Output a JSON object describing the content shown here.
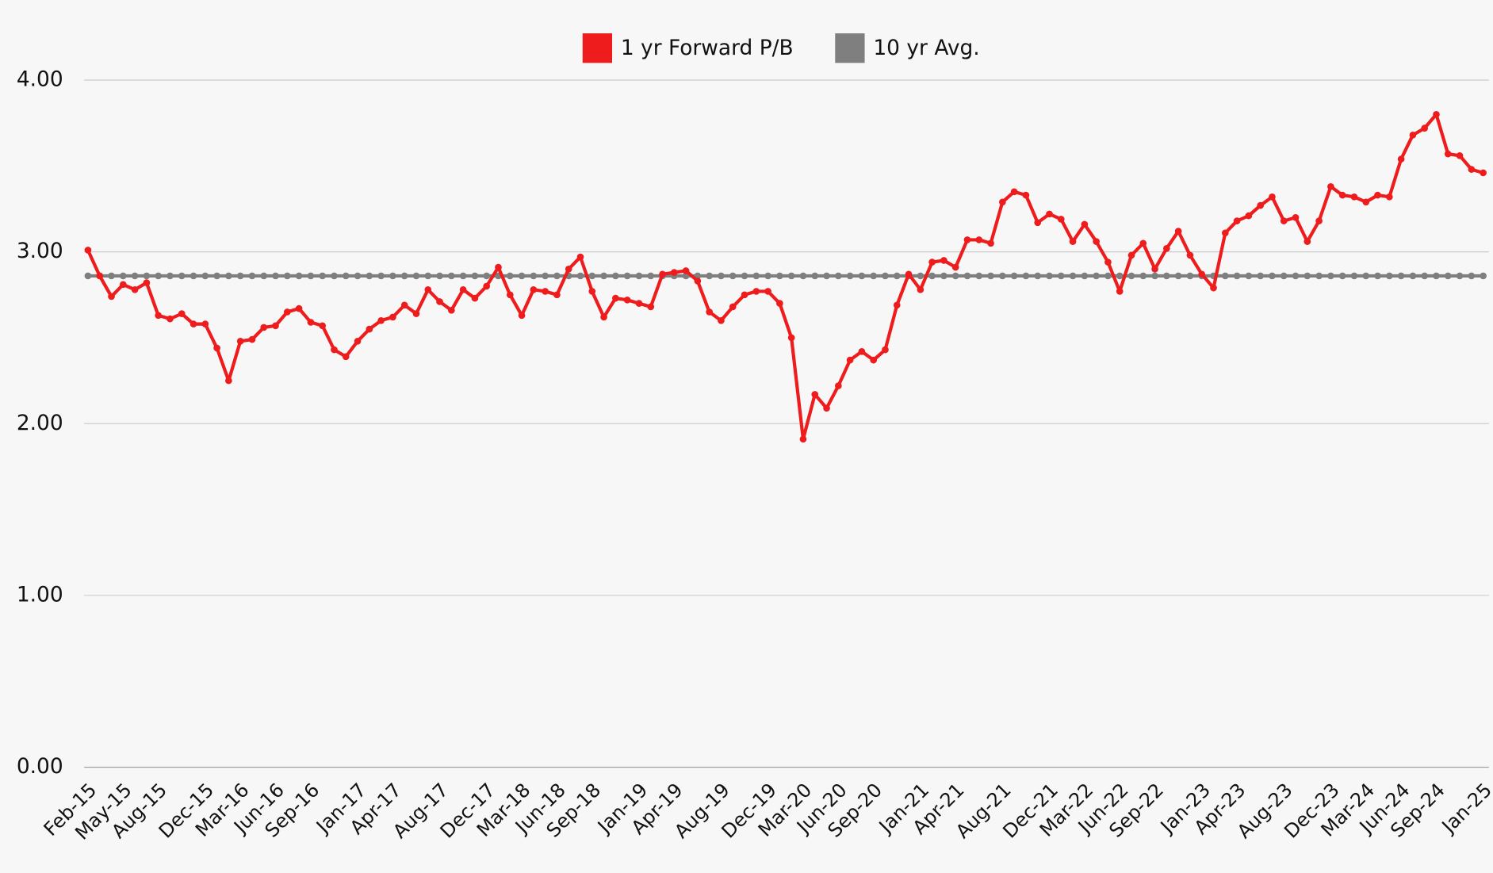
{
  "chart_data": {
    "type": "line",
    "categories": [
      "Feb-15",
      null,
      null,
      "May-15",
      null,
      null,
      "Aug-15",
      null,
      null,
      null,
      "Dec-15",
      null,
      null,
      "Mar-16",
      null,
      null,
      "Jun-16",
      null,
      null,
      "Sep-16",
      null,
      null,
      null,
      "Jan-17",
      null,
      null,
      "Apr-17",
      null,
      null,
      null,
      "Aug-17",
      null,
      null,
      null,
      "Dec-17",
      null,
      null,
      "Mar-18",
      null,
      null,
      "Jun-18",
      null,
      null,
      "Sep-18",
      null,
      null,
      null,
      "Jan-19",
      null,
      null,
      "Apr-19",
      null,
      null,
      null,
      "Aug-19",
      null,
      null,
      null,
      "Dec-19",
      null,
      null,
      "Mar-20",
      null,
      null,
      "Jun-20",
      null,
      null,
      "Sep-20",
      null,
      null,
      null,
      "Jan-21",
      null,
      null,
      "Apr-21",
      null,
      null,
      null,
      "Aug-21",
      null,
      null,
      null,
      "Dec-21",
      null,
      null,
      "Mar-22",
      null,
      null,
      "Jun-22",
      null,
      null,
      "Sep-22",
      null,
      null,
      null,
      "Jan-23",
      null,
      null,
      "Apr-23",
      null,
      null,
      null,
      "Aug-23",
      null,
      null,
      null,
      "Dec-23",
      null,
      null,
      "Mar-24",
      null,
      null,
      "Jun-24",
      null,
      null,
      "Sep-24",
      null,
      null,
      null,
      "Jan-25"
    ],
    "series": [
      {
        "name": "1 yr Forward P/B",
        "color": "#ee1c1c",
        "values": [
          3.01,
          2.86,
          2.74,
          2.81,
          2.78,
          2.82,
          2.63,
          2.61,
          2.64,
          2.58,
          2.58,
          2.44,
          2.25,
          2.48,
          2.49,
          2.56,
          2.57,
          2.65,
          2.67,
          2.59,
          2.57,
          2.43,
          2.39,
          2.48,
          2.55,
          2.6,
          2.62,
          2.69,
          2.64,
          2.78,
          2.71,
          2.66,
          2.78,
          2.73,
          2.8,
          2.91,
          2.75,
          2.63,
          2.78,
          2.77,
          2.75,
          2.9,
          2.97,
          2.77,
          2.62,
          2.73,
          2.72,
          2.7,
          2.68,
          2.87,
          2.88,
          2.89,
          2.83,
          2.65,
          2.6,
          2.68,
          2.75,
          2.77,
          2.77,
          2.7,
          2.5,
          1.91,
          2.17,
          2.09,
          2.22,
          2.37,
          2.42,
          2.37,
          2.43,
          2.69,
          2.87,
          2.78,
          2.94,
          2.95,
          2.91,
          3.07,
          3.07,
          3.05,
          3.29,
          3.35,
          3.33,
          3.17,
          3.22,
          3.19,
          3.06,
          3.16,
          3.06,
          2.94,
          2.77,
          2.98,
          3.05,
          2.9,
          3.02,
          3.12,
          2.98,
          2.87,
          2.79,
          3.11,
          3.18,
          3.21,
          3.27,
          3.32,
          3.18,
          3.2,
          3.06,
          3.18,
          3.38,
          3.33,
          3.32,
          3.29,
          3.33,
          3.32,
          3.54,
          3.68,
          3.72,
          3.8,
          3.57,
          3.56,
          3.48,
          3.46
        ]
      },
      {
        "name": "10 yr Avg.",
        "color": "#7f7f7f",
        "values": [
          2.86,
          2.86,
          2.86,
          2.86,
          2.86,
          2.86,
          2.86,
          2.86,
          2.86,
          2.86,
          2.86,
          2.86,
          2.86,
          2.86,
          2.86,
          2.86,
          2.86,
          2.86,
          2.86,
          2.86,
          2.86,
          2.86,
          2.86,
          2.86,
          2.86,
          2.86,
          2.86,
          2.86,
          2.86,
          2.86,
          2.86,
          2.86,
          2.86,
          2.86,
          2.86,
          2.86,
          2.86,
          2.86,
          2.86,
          2.86,
          2.86,
          2.86,
          2.86,
          2.86,
          2.86,
          2.86,
          2.86,
          2.86,
          2.86,
          2.86,
          2.86,
          2.86,
          2.86,
          2.86,
          2.86,
          2.86,
          2.86,
          2.86,
          2.86,
          2.86,
          2.86,
          2.86,
          2.86,
          2.86,
          2.86,
          2.86,
          2.86,
          2.86,
          2.86,
          2.86,
          2.86,
          2.86,
          2.86,
          2.86,
          2.86,
          2.86,
          2.86,
          2.86,
          2.86,
          2.86,
          2.86,
          2.86,
          2.86,
          2.86,
          2.86,
          2.86,
          2.86,
          2.86,
          2.86,
          2.86,
          2.86,
          2.86,
          2.86,
          2.86,
          2.86,
          2.86,
          2.86,
          2.86,
          2.86,
          2.86,
          2.86,
          2.86,
          2.86,
          2.86,
          2.86,
          2.86,
          2.86,
          2.86,
          2.86,
          2.86,
          2.86,
          2.86,
          2.86,
          2.86,
          2.86,
          2.86,
          2.86,
          2.86,
          2.86,
          2.86
        ]
      }
    ],
    "ylim": [
      0,
      4
    ],
    "yticks": [
      {
        "value": 0,
        "label": "0.00"
      },
      {
        "value": 1,
        "label": "1.00"
      },
      {
        "value": 2,
        "label": "2.00"
      },
      {
        "value": 3,
        "label": "3.00"
      },
      {
        "value": 4,
        "label": "4.00"
      }
    ],
    "grid": true,
    "legend": "top"
  }
}
